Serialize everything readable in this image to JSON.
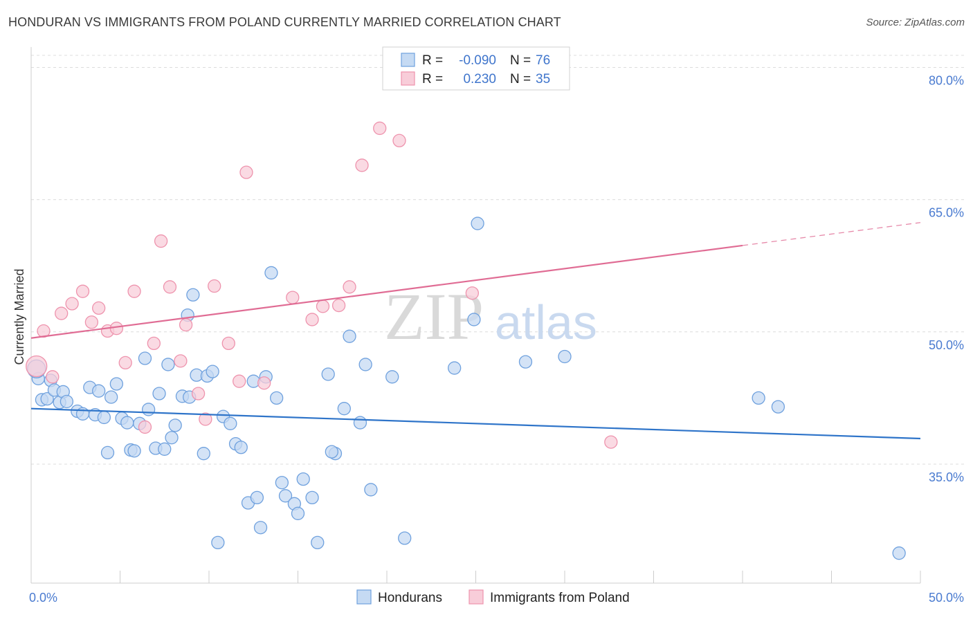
{
  "header": {
    "title": "HONDURAN VS IMMIGRANTS FROM POLAND CURRENTLY MARRIED CORRELATION CHART",
    "source": "Source: ZipAtlas.com"
  },
  "watermark": {
    "zip": "ZIP",
    "atlas": "atlas"
  },
  "legend": {
    "rows": [
      {
        "r_label": "R =",
        "r_value": "-0.090",
        "n_label": "N =",
        "n_value": "76",
        "color": "#a9c6ef"
      },
      {
        "r_label": "R =",
        "r_value": "0.230",
        "n_label": "N =",
        "n_value": "35",
        "color": "#f5b8cb"
      }
    ]
  },
  "chart_data": {
    "type": "scatter",
    "title": "HONDURAN VS IMMIGRANTS FROM POLAND CURRENTLY MARRIED CORRELATION CHART",
    "xlabel": "",
    "ylabel": "Currently Married",
    "xlim": [
      0,
      50
    ],
    "ylim": [
      21.5,
      82
    ],
    "x_tick_labels": [
      "0.0%",
      "50.0%"
    ],
    "y_ticks": [
      35,
      50,
      65,
      80
    ],
    "y_tick_labels": [
      "35.0%",
      "50.0%",
      "65.0%",
      "80.0%"
    ],
    "grid": true,
    "legend_position": "top-center",
    "series": [
      {
        "name": "Hondurans",
        "color": "#6fa1de",
        "fill": "#c5daf3",
        "trend": {
          "x": [
            0,
            50
          ],
          "y": [
            41.3,
            37.9
          ],
          "color": "#2e74c9"
        },
        "points": [
          [
            0.4,
            44.7
          ],
          [
            0.6,
            42.3
          ],
          [
            0.9,
            42.4
          ],
          [
            1.1,
            44.5
          ],
          [
            1.3,
            43.4
          ],
          [
            1.6,
            42.0
          ],
          [
            1.8,
            43.2
          ],
          [
            2.0,
            42.1
          ],
          [
            2.6,
            41.0
          ],
          [
            2.9,
            40.7
          ],
          [
            3.3,
            43.7
          ],
          [
            3.6,
            40.6
          ],
          [
            3.8,
            43.3
          ],
          [
            4.1,
            40.3
          ],
          [
            4.5,
            42.6
          ],
          [
            4.3,
            36.3
          ],
          [
            4.8,
            44.1
          ],
          [
            5.1,
            40.2
          ],
          [
            5.4,
            39.7
          ],
          [
            5.6,
            36.6
          ],
          [
            5.8,
            36.5
          ],
          [
            6.1,
            39.6
          ],
          [
            6.4,
            47.0
          ],
          [
            6.6,
            41.2
          ],
          [
            7.0,
            36.8
          ],
          [
            7.2,
            43.0
          ],
          [
            7.5,
            36.7
          ],
          [
            7.7,
            46.3
          ],
          [
            7.9,
            38.0
          ],
          [
            8.1,
            39.4
          ],
          [
            8.5,
            42.7
          ],
          [
            8.8,
            51.9
          ],
          [
            9.1,
            54.2
          ],
          [
            9.3,
            45.1
          ],
          [
            9.7,
            36.2
          ],
          [
            9.9,
            45.0
          ],
          [
            10.2,
            45.5
          ],
          [
            10.5,
            26.1
          ],
          [
            10.8,
            40.4
          ],
          [
            11.2,
            39.6
          ],
          [
            11.5,
            37.3
          ],
          [
            11.8,
            36.9
          ],
          [
            12.2,
            30.6
          ],
          [
            12.5,
            44.4
          ],
          [
            12.7,
            31.2
          ],
          [
            12.9,
            27.8
          ],
          [
            13.2,
            44.9
          ],
          [
            13.5,
            56.7
          ],
          [
            13.8,
            42.5
          ],
          [
            14.1,
            32.9
          ],
          [
            14.3,
            31.4
          ],
          [
            14.8,
            30.5
          ],
          [
            15.0,
            29.4
          ],
          [
            15.3,
            33.3
          ],
          [
            15.8,
            31.2
          ],
          [
            16.1,
            26.1
          ],
          [
            16.7,
            45.2
          ],
          [
            17.1,
            36.2
          ],
          [
            17.6,
            41.3
          ],
          [
            17.9,
            49.5
          ],
          [
            18.5,
            39.7
          ],
          [
            18.8,
            46.3
          ],
          [
            19.1,
            32.1
          ],
          [
            20.3,
            44.9
          ],
          [
            21.0,
            26.6
          ],
          [
            23.8,
            45.9
          ],
          [
            24.9,
            51.4
          ],
          [
            25.1,
            62.3
          ],
          [
            27.8,
            46.6
          ],
          [
            30.0,
            47.2
          ],
          [
            40.9,
            42.5
          ],
          [
            42.0,
            41.5
          ],
          [
            48.8,
            24.9
          ],
          [
            0.3,
            45.8
          ],
          [
            8.9,
            42.6
          ],
          [
            16.9,
            36.4
          ]
        ]
      },
      {
        "name": "Immigrants from Poland",
        "color": "#ee93ad",
        "fill": "#f8cdd9",
        "trend": {
          "x": [
            0,
            40
          ],
          "y": [
            49.3,
            59.8
          ],
          "color": "#e06c94"
        },
        "trend_dashed": {
          "x": [
            40,
            50
          ],
          "y": [
            59.8,
            62.4
          ]
        },
        "points": [
          [
            0.3,
            46.1
          ],
          [
            0.7,
            50.1
          ],
          [
            1.2,
            44.9
          ],
          [
            1.7,
            52.1
          ],
          [
            2.3,
            53.2
          ],
          [
            2.9,
            54.6
          ],
          [
            3.4,
            51.1
          ],
          [
            3.8,
            52.7
          ],
          [
            4.3,
            50.1
          ],
          [
            4.8,
            50.4
          ],
          [
            5.3,
            46.5
          ],
          [
            5.8,
            54.6
          ],
          [
            6.4,
            39.2
          ],
          [
            6.9,
            48.7
          ],
          [
            7.3,
            60.3
          ],
          [
            7.8,
            55.1
          ],
          [
            8.4,
            46.7
          ],
          [
            8.7,
            50.8
          ],
          [
            9.4,
            43.0
          ],
          [
            9.8,
            40.1
          ],
          [
            10.3,
            55.2
          ],
          [
            11.1,
            48.7
          ],
          [
            11.7,
            44.4
          ],
          [
            12.1,
            68.1
          ],
          [
            13.1,
            44.2
          ],
          [
            14.7,
            53.9
          ],
          [
            15.8,
            51.4
          ],
          [
            16.4,
            52.9
          ],
          [
            17.3,
            53.0
          ],
          [
            17.9,
            55.1
          ],
          [
            18.6,
            68.9
          ],
          [
            19.6,
            73.1
          ],
          [
            20.7,
            71.7
          ],
          [
            24.8,
            54.4
          ],
          [
            32.6,
            37.5
          ]
        ]
      }
    ]
  },
  "bottom_legend": {
    "items": [
      {
        "label": "Hondurans",
        "color": "#a9c6ef"
      },
      {
        "label": "Immigrants from Poland",
        "color": "#f5b8cb"
      }
    ]
  }
}
